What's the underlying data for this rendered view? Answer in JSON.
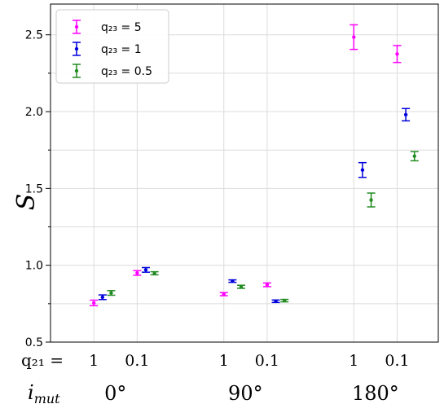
{
  "chart_data": {
    "type": "scatter",
    "ylabel": "S",
    "ylim": [
      0.5,
      2.7
    ],
    "yticks": [
      0.5,
      1.0,
      1.5,
      2.0,
      2.5
    ],
    "ytick_labels": [
      "0.5",
      "1.0",
      "1.5",
      "2.0",
      "2.5"
    ],
    "grid": true,
    "legend_position": "top-left",
    "row_labels": {
      "q21": "q₂₁ =",
      "imut": "i",
      "imut_sub": "mut"
    },
    "q21_labels": [
      "1",
      "0.1",
      "1",
      "0.1",
      "1",
      "0.1"
    ],
    "inclinations": [
      "0°",
      "90°",
      "180°"
    ],
    "series": [
      {
        "name": "q₂₃ = 5",
        "color": "#ff00ff",
        "x": [
          0.0,
          1.0,
          3.0,
          4.0,
          6.0,
          7.0
        ],
        "y": [
          0.755,
          0.95,
          0.812,
          0.873,
          2.485,
          2.375
        ],
        "yerr": [
          0.018,
          0.015,
          0.01,
          0.012,
          0.08,
          0.055
        ]
      },
      {
        "name": "q₂₃ = 1",
        "color": "#0000dd",
        "x": [
          0.2,
          1.2,
          3.2,
          4.2,
          6.2,
          7.2
        ],
        "y": [
          0.792,
          0.97,
          0.897,
          0.766,
          1.62,
          1.98
        ],
        "yerr": [
          0.015,
          0.015,
          0.008,
          0.008,
          0.048,
          0.04
        ]
      },
      {
        "name": "q₂₃ = 0.5",
        "color": "#228b22",
        "x": [
          0.4,
          1.4,
          3.4,
          4.4,
          6.4,
          7.4
        ],
        "y": [
          0.82,
          0.948,
          0.86,
          0.77,
          1.425,
          1.71
        ],
        "yerr": [
          0.015,
          0.01,
          0.01,
          0.008,
          0.045,
          0.03
        ]
      }
    ]
  }
}
